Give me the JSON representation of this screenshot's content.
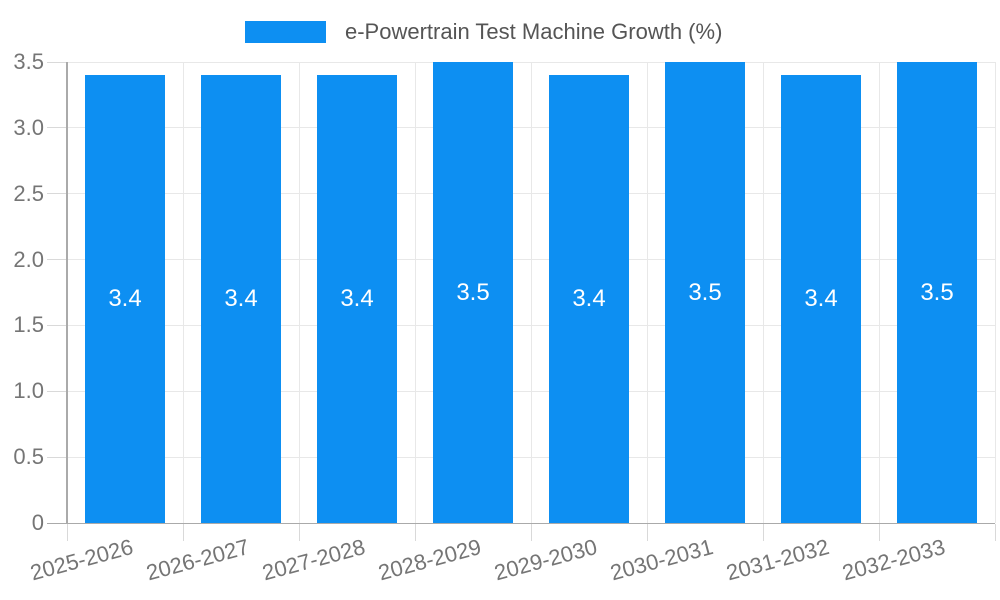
{
  "chart_data": {
    "type": "bar",
    "legend": "e-Powertrain Test Machine Growth (%)",
    "legend_position": "top-center",
    "categories": [
      "2025-2026",
      "2026-2027",
      "2027-2028",
      "2028-2029",
      "2029-2030",
      "2030-2031",
      "2031-2032",
      "2032-2033"
    ],
    "values": [
      3.4,
      3.4,
      3.4,
      3.5,
      3.4,
      3.5,
      3.4,
      3.5
    ],
    "data_labels": [
      "3.4",
      "3.4",
      "3.4",
      "3.5",
      "3.4",
      "3.5",
      "3.4",
      "3.5"
    ],
    "xlabel": "",
    "ylabel": "",
    "ylim": [
      0,
      3.5
    ],
    "y_ticks": [
      0,
      0.5,
      1.0,
      1.5,
      2.0,
      2.5,
      3.0,
      3.5
    ],
    "y_tick_labels": [
      "0",
      "0.5",
      "1.0",
      "1.5",
      "2.0",
      "2.5",
      "3.0",
      "3.5"
    ],
    "grid": true,
    "colors": {
      "bar": "#0d8ff2",
      "bar_value_label": "#ffffff",
      "grid_line": "#e8e8e8",
      "tick_mark": "#d9d9d9",
      "axis_line": "#aaaaaa",
      "axis_text": "#757575",
      "legend_text": "#555555",
      "background": "#ffffff"
    }
  }
}
